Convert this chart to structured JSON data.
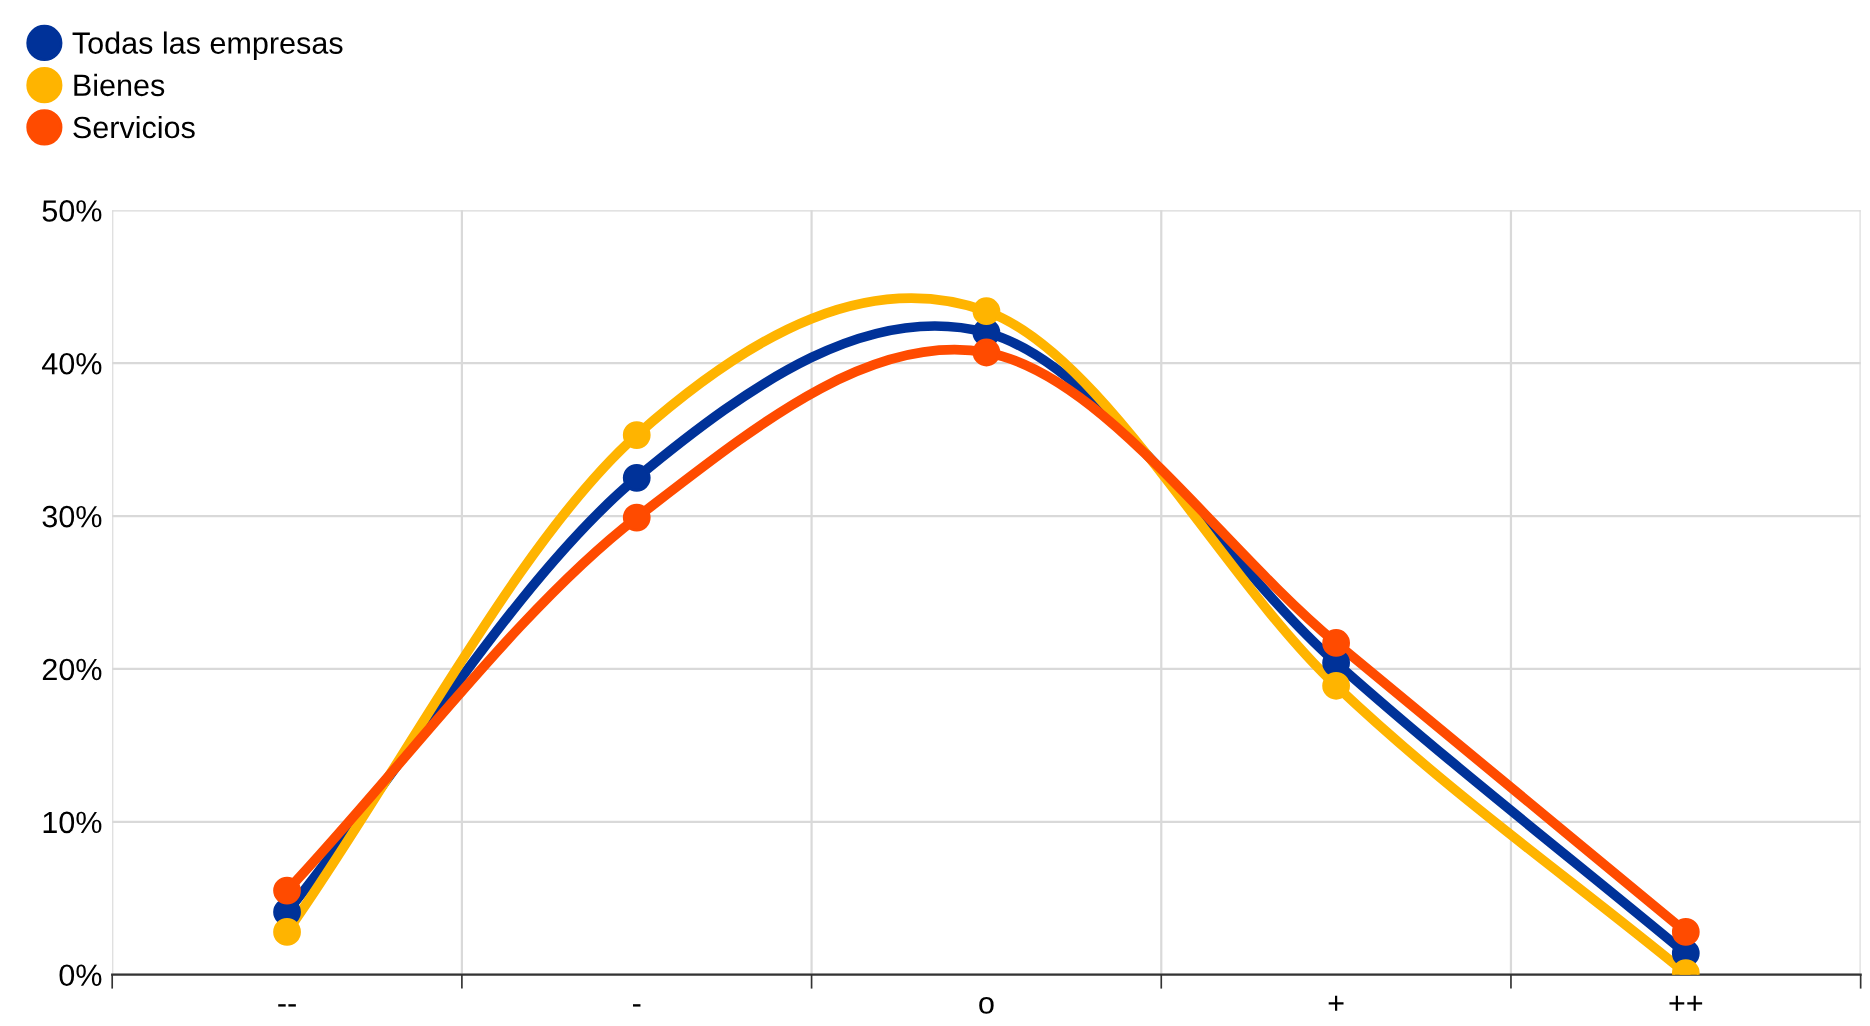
{
  "chart_data": {
    "type": "line",
    "categories": [
      "--",
      "-",
      "o",
      "+",
      "++"
    ],
    "series": [
      {
        "name": "Todas las empresas",
        "color": "#003299",
        "values": [
          4.1,
          32.5,
          42.0,
          20.4,
          1.4
        ]
      },
      {
        "name": "Bienes",
        "color": "#ffb400",
        "values": [
          2.8,
          35.3,
          43.4,
          18.9,
          0.1
        ]
      },
      {
        "name": "Servicios",
        "color": "#ff4b00",
        "values": [
          5.5,
          29.9,
          40.7,
          21.7,
          2.8
        ]
      }
    ],
    "ylim": [
      0,
      50
    ],
    "yticks": [
      {
        "value": 0,
        "label": "0%"
      },
      {
        "value": 10,
        "label": "10%"
      },
      {
        "value": 20,
        "label": "20%"
      },
      {
        "value": 30,
        "label": "30%"
      },
      {
        "value": 40,
        "label": "40%"
      },
      {
        "value": 50,
        "label": "50%"
      }
    ],
    "grid": true,
    "legend": "top left",
    "marker": "circle",
    "line_style": "solid"
  }
}
